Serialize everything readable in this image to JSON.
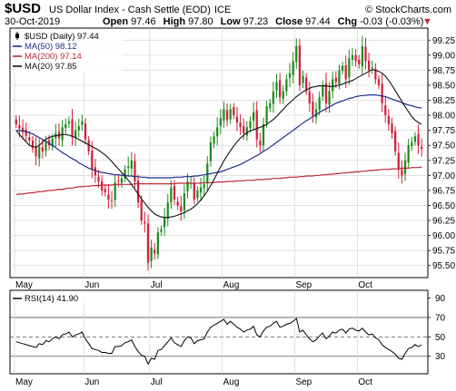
{
  "header": {
    "symbol": "$USD",
    "name": "US Dollar Index - Cash Settle (EOD)",
    "exchange": "ICE",
    "watermark": "© StockCharts.com",
    "date": "30-Oct-2019",
    "ohlc": [
      {
        "label": "Open",
        "value": "97.46"
      },
      {
        "label": "High",
        "value": "97.80"
      },
      {
        "label": "Low",
        "value": "97.23"
      },
      {
        "label": "Close",
        "value": "97.44"
      },
      {
        "label": "Chg",
        "value": "-0.03 (-0.03%)"
      }
    ],
    "chg_arrow": "▼"
  },
  "chart_data": [
    {
      "type": "candlestick",
      "legend_position": "top-left",
      "legend": [
        {
          "text": "$USD (Daily) 97.44",
          "color": "#000000",
          "swatch": "candle"
        },
        {
          "text": "MA(50) 98.12",
          "color": "#1f2f8c",
          "swatch": "line"
        },
        {
          "text": "MA(200) 97.14",
          "color": "#c0283a",
          "swatch": "line"
        },
        {
          "text": "MA(20) 97.85",
          "color": "#111111",
          "swatch": "line"
        }
      ],
      "y_ticks": [
        "95.50",
        "95.75",
        "96.00",
        "96.25",
        "96.50",
        "96.75",
        "97.00",
        "97.25",
        "97.50",
        "97.75",
        "98.00",
        "98.25",
        "98.50",
        "98.75",
        "99.00",
        "99.25"
      ],
      "ylim": [
        95.3,
        99.45
      ],
      "x_labels": [
        {
          "label": "May",
          "index": 0
        },
        {
          "label": "Jun",
          "index": 21
        },
        {
          "label": "Jul",
          "index": 41
        },
        {
          "label": "Aug",
          "index": 63
        },
        {
          "label": "Sep",
          "index": 85
        },
        {
          "label": "Oct",
          "index": 104
        }
      ],
      "up_color": "#1e8c1e",
      "down_color": "#d0213a",
      "grid": true,
      "close": [
        97.85,
        97.78,
        97.72,
        97.66,
        97.58,
        97.45,
        97.32,
        97.48,
        97.4,
        97.55,
        97.5,
        97.62,
        97.7,
        97.62,
        97.8,
        97.85,
        97.9,
        97.65,
        97.75,
        97.82,
        97.9,
        97.6,
        97.4,
        97.1,
        97.0,
        96.9,
        96.75,
        96.72,
        96.6,
        96.58,
        96.88,
        96.9,
        96.95,
        97.1,
        97.15,
        97.25,
        96.9,
        96.55,
        96.25,
        96.2,
        95.55,
        95.8,
        95.7,
        96.05,
        96.1,
        96.3,
        96.55,
        96.8,
        96.6,
        96.5,
        96.4,
        96.7,
        96.9,
        96.88,
        96.6,
        96.75,
        96.8,
        96.85,
        97.2,
        97.55,
        97.65,
        97.8,
        97.95,
        98.1,
        97.92,
        98.1,
        98.0,
        97.88,
        97.8,
        97.7,
        97.8,
        97.9,
        98.05,
        97.6,
        97.5,
        97.85,
        98.15,
        98.2,
        98.4,
        98.55,
        98.3,
        98.4,
        98.6,
        98.7,
        98.9,
        99.15,
        98.5,
        98.65,
        98.4,
        98.2,
        98.0,
        98.1,
        98.3,
        98.5,
        98.2,
        98.4,
        98.6,
        98.55,
        98.75,
        98.82,
        98.6,
        98.95,
        99.0,
        98.9,
        98.85,
        99.15,
        98.9,
        98.75,
        98.8,
        98.6,
        98.5,
        98.2,
        98.0,
        97.85,
        97.7,
        97.4,
        97.1,
        97.0,
        97.25,
        97.5,
        97.55,
        97.65,
        97.5,
        97.44
      ],
      "ma50": [
        97.75,
        97.75,
        97.74,
        97.73,
        97.71,
        97.69,
        97.66,
        97.63,
        97.6,
        97.57,
        97.53,
        97.5,
        97.46,
        97.42,
        97.38,
        97.35,
        97.31,
        97.28,
        97.25,
        97.21,
        97.18,
        97.15,
        97.12,
        97.1,
        97.08,
        97.06,
        97.05,
        97.04,
        97.03,
        97.02,
        97.01,
        97.01,
        97.0,
        97.0,
        96.99,
        96.99,
        96.98,
        96.98,
        96.97,
        96.97,
        96.96,
        96.96,
        96.96,
        96.96,
        96.96,
        96.96,
        96.96,
        96.96,
        96.97,
        96.97,
        96.97,
        96.98,
        96.98,
        96.98,
        96.99,
        96.99,
        97.0,
        97.01,
        97.02,
        97.03,
        97.04,
        97.05,
        97.06,
        97.08,
        97.1,
        97.12,
        97.14,
        97.16,
        97.18,
        97.21,
        97.24,
        97.27,
        97.3,
        97.33,
        97.36,
        97.4,
        97.43,
        97.47,
        97.51,
        97.55,
        97.59,
        97.63,
        97.67,
        97.71,
        97.75,
        97.79,
        97.83,
        97.87,
        97.91,
        97.94,
        97.98,
        98.01,
        98.05,
        98.08,
        98.11,
        98.14,
        98.17,
        98.2,
        98.22,
        98.24,
        98.26,
        98.28,
        98.29,
        98.31,
        98.32,
        98.33,
        98.33,
        98.34,
        98.34,
        98.34,
        98.33,
        98.32,
        98.31,
        98.29,
        98.27,
        98.25,
        98.23,
        98.21,
        98.19,
        98.17,
        98.16,
        98.14,
        98.13,
        98.12
      ],
      "ma200": [
        96.68,
        96.69,
        96.69,
        96.7,
        96.71,
        96.71,
        96.72,
        96.73,
        96.73,
        96.74,
        96.75,
        96.75,
        96.76,
        96.77,
        96.77,
        96.78,
        96.79,
        96.79,
        96.8,
        96.81,
        96.81,
        96.82,
        96.82,
        96.83,
        96.83,
        96.83,
        96.84,
        96.84,
        96.84,
        96.84,
        96.85,
        96.85,
        96.85,
        96.85,
        96.85,
        96.85,
        96.86,
        96.86,
        96.86,
        96.86,
        96.86,
        96.86,
        96.86,
        96.86,
        96.86,
        96.86,
        96.86,
        96.86,
        96.86,
        96.87,
        96.87,
        96.87,
        96.87,
        96.87,
        96.87,
        96.87,
        96.87,
        96.88,
        96.88,
        96.88,
        96.88,
        96.89,
        96.89,
        96.89,
        96.9,
        96.9,
        96.9,
        96.91,
        96.91,
        96.91,
        96.92,
        96.92,
        96.92,
        96.93,
        96.93,
        96.93,
        96.94,
        96.94,
        96.95,
        96.95,
        96.95,
        96.96,
        96.96,
        96.97,
        96.97,
        96.97,
        96.98,
        96.98,
        96.99,
        96.99,
        96.99,
        97.0,
        97.0,
        97.01,
        97.01,
        97.02,
        97.02,
        97.03,
        97.03,
        97.04,
        97.04,
        97.05,
        97.05,
        97.06,
        97.06,
        97.07,
        97.07,
        97.08,
        97.08,
        97.09,
        97.09,
        97.1,
        97.1,
        97.1,
        97.11,
        97.11,
        97.11,
        97.12,
        97.12,
        97.12,
        97.13,
        97.13,
        97.13,
        97.14
      ],
      "ma20": [
        97.75,
        97.68,
        97.62,
        97.56,
        97.5,
        97.48,
        97.47,
        97.5,
        97.55,
        97.6,
        97.63,
        97.65,
        97.66,
        97.67,
        97.68,
        97.68,
        97.67,
        97.65,
        97.63,
        97.6,
        97.57,
        97.54,
        97.51,
        97.48,
        97.45,
        97.42,
        97.38,
        97.34,
        97.29,
        97.23,
        97.17,
        97.11,
        97.05,
        96.99,
        96.92,
        96.85,
        96.77,
        96.69,
        96.61,
        96.54,
        96.47,
        96.41,
        96.36,
        96.33,
        96.31,
        96.3,
        96.3,
        96.31,
        96.32,
        96.34,
        96.36,
        96.38,
        96.41,
        96.44,
        96.48,
        96.53,
        96.59,
        96.66,
        96.74,
        96.83,
        96.93,
        97.04,
        97.14,
        97.24,
        97.33,
        97.41,
        97.49,
        97.56,
        97.62,
        97.67,
        97.71,
        97.74,
        97.76,
        97.78,
        97.8,
        97.82,
        97.85,
        97.89,
        97.93,
        97.98,
        98.04,
        98.1,
        98.16,
        98.21,
        98.26,
        98.31,
        98.35,
        98.39,
        98.42,
        98.45,
        98.47,
        98.48,
        98.49,
        98.49,
        98.49,
        98.48,
        98.48,
        98.49,
        98.5,
        98.52,
        98.54,
        98.56,
        98.58,
        98.61,
        98.64,
        98.67,
        98.7,
        98.73,
        98.76,
        98.75,
        98.73,
        98.7,
        98.65,
        98.58,
        98.5,
        98.41,
        98.32,
        98.23,
        98.14,
        98.06,
        97.98,
        97.92,
        97.88,
        97.85
      ]
    },
    {
      "type": "line",
      "legend": [
        {
          "text": "RSI(14) 41.90",
          "color": "#000000"
        }
      ],
      "y_ticks": [
        "30",
        "50",
        "70",
        "90"
      ],
      "ylim": [
        12,
        98
      ],
      "reference_lines": [
        70,
        50,
        30
      ],
      "x_labels": [
        {
          "label": "May",
          "index": 0
        },
        {
          "label": "Jun",
          "index": 21
        },
        {
          "label": "Jul",
          "index": 41
        },
        {
          "label": "Aug",
          "index": 63
        },
        {
          "label": "Sep",
          "index": 85
        },
        {
          "label": "Oct",
          "index": 104
        }
      ],
      "values": [
        45,
        44,
        43,
        42,
        41,
        40,
        39,
        43,
        42,
        46,
        45,
        48,
        50,
        48,
        52,
        53,
        55,
        50,
        52,
        53,
        55,
        48,
        43,
        38,
        37,
        36,
        34,
        34,
        33,
        33,
        40,
        40,
        41,
        44,
        45,
        47,
        40,
        35,
        31,
        30,
        22,
        28,
        27,
        36,
        37,
        41,
        45,
        49,
        44,
        42,
        40,
        46,
        50,
        49,
        43,
        46,
        47,
        48,
        55,
        60,
        62,
        64,
        66,
        68,
        63,
        66,
        63,
        60,
        58,
        55,
        57,
        58,
        61,
        52,
        50,
        56,
        60,
        61,
        64,
        66,
        60,
        61,
        63,
        64,
        66,
        69,
        55,
        57,
        52,
        48,
        45,
        47,
        51,
        54,
        48,
        51,
        55,
        54,
        57,
        58,
        54,
        58,
        59,
        57,
        56,
        59,
        55,
        52,
        53,
        49,
        47,
        42,
        39,
        37,
        35,
        32,
        28,
        27,
        33,
        38,
        39,
        42,
        40,
        41.9
      ]
    }
  ]
}
